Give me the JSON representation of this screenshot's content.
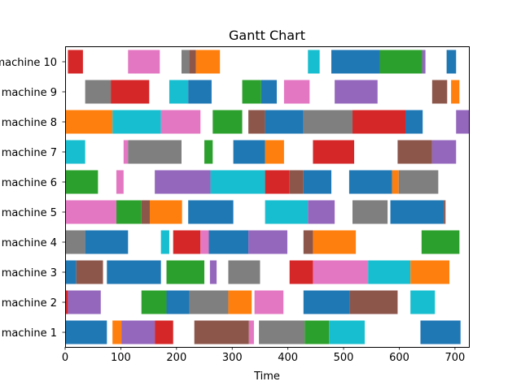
{
  "chart_data": {
    "type": "gantt",
    "title": "Gantt Chart",
    "xlabel": "Time",
    "ylabel": "",
    "xlim": [
      0,
      725
    ],
    "xticks": [
      0,
      100,
      200,
      300,
      400,
      500,
      600,
      700
    ],
    "grid": false,
    "legend": "none",
    "colors": {
      "blue": "#1f77b4",
      "orange": "#ff7f0e",
      "green": "#2ca02c",
      "red": "#d62728",
      "purple": "#9467bd",
      "brown": "#8c564b",
      "pink": "#e377c2",
      "gray": "#7f7f7f",
      "olive": "#bcbd22",
      "cyan": "#17becf"
    },
    "machines": [
      {
        "label": "machine 1",
        "tasks": [
          {
            "start": 0,
            "end": 75,
            "color": "blue"
          },
          {
            "start": 85,
            "end": 101,
            "color": "orange"
          },
          {
            "start": 101,
            "end": 161,
            "color": "purple"
          },
          {
            "start": 161,
            "end": 194,
            "color": "red"
          },
          {
            "start": 232,
            "end": 330,
            "color": "brown"
          },
          {
            "start": 330,
            "end": 339,
            "color": "pink"
          },
          {
            "start": 348,
            "end": 430,
            "color": "gray"
          },
          {
            "start": 430,
            "end": 474,
            "color": "green"
          },
          {
            "start": 474,
            "end": 538,
            "color": "cyan"
          },
          {
            "start": 638,
            "end": 710,
            "color": "blue"
          }
        ]
      },
      {
        "label": "machine 2",
        "tasks": [
          {
            "start": 0,
            "end": 5,
            "color": "red"
          },
          {
            "start": 5,
            "end": 64,
            "color": "purple"
          },
          {
            "start": 137,
            "end": 182,
            "color": "green"
          },
          {
            "start": 182,
            "end": 223,
            "color": "blue"
          },
          {
            "start": 223,
            "end": 293,
            "color": "gray"
          },
          {
            "start": 293,
            "end": 335,
            "color": "orange"
          },
          {
            "start": 340,
            "end": 392,
            "color": "pink"
          },
          {
            "start": 428,
            "end": 511,
            "color": "blue"
          },
          {
            "start": 511,
            "end": 597,
            "color": "brown"
          },
          {
            "start": 620,
            "end": 664,
            "color": "cyan"
          }
        ]
      },
      {
        "label": "machine 3",
        "tasks": [
          {
            "start": 0,
            "end": 20,
            "color": "blue"
          },
          {
            "start": 20,
            "end": 68,
            "color": "brown"
          },
          {
            "start": 75,
            "end": 172,
            "color": "blue"
          },
          {
            "start": 182,
            "end": 250,
            "color": "green"
          },
          {
            "start": 260,
            "end": 272,
            "color": "purple"
          },
          {
            "start": 293,
            "end": 350,
            "color": "gray"
          },
          {
            "start": 403,
            "end": 445,
            "color": "red"
          },
          {
            "start": 445,
            "end": 544,
            "color": "pink"
          },
          {
            "start": 544,
            "end": 620,
            "color": "cyan"
          },
          {
            "start": 620,
            "end": 690,
            "color": "orange"
          }
        ]
      },
      {
        "label": "machine 4",
        "tasks": [
          {
            "start": 0,
            "end": 36,
            "color": "gray"
          },
          {
            "start": 36,
            "end": 113,
            "color": "blue"
          },
          {
            "start": 172,
            "end": 187,
            "color": "cyan"
          },
          {
            "start": 194,
            "end": 243,
            "color": "red"
          },
          {
            "start": 243,
            "end": 258,
            "color": "pink"
          },
          {
            "start": 258,
            "end": 329,
            "color": "blue"
          },
          {
            "start": 329,
            "end": 399,
            "color": "purple"
          },
          {
            "start": 428,
            "end": 445,
            "color": "brown"
          },
          {
            "start": 445,
            "end": 522,
            "color": "orange"
          },
          {
            "start": 640,
            "end": 708,
            "color": "green"
          }
        ]
      },
      {
        "label": "machine 5",
        "tasks": [
          {
            "start": 0,
            "end": 92,
            "color": "pink"
          },
          {
            "start": 92,
            "end": 137,
            "color": "green"
          },
          {
            "start": 137,
            "end": 152,
            "color": "brown"
          },
          {
            "start": 152,
            "end": 210,
            "color": "orange"
          },
          {
            "start": 221,
            "end": 302,
            "color": "blue"
          },
          {
            "start": 359,
            "end": 436,
            "color": "cyan"
          },
          {
            "start": 436,
            "end": 484,
            "color": "purple"
          },
          {
            "start": 516,
            "end": 579,
            "color": "gray"
          },
          {
            "start": 584,
            "end": 680,
            "color": "blue"
          },
          {
            "start": 680,
            "end": 683,
            "color": "brown"
          }
        ]
      },
      {
        "label": "machine 6",
        "tasks": [
          {
            "start": 0,
            "end": 59,
            "color": "green"
          },
          {
            "start": 92,
            "end": 105,
            "color": "pink"
          },
          {
            "start": 161,
            "end": 261,
            "color": "purple"
          },
          {
            "start": 261,
            "end": 359,
            "color": "cyan"
          },
          {
            "start": 359,
            "end": 403,
            "color": "red"
          },
          {
            "start": 403,
            "end": 428,
            "color": "brown"
          },
          {
            "start": 428,
            "end": 478,
            "color": "blue"
          },
          {
            "start": 510,
            "end": 587,
            "color": "blue"
          },
          {
            "start": 587,
            "end": 599,
            "color": "orange"
          },
          {
            "start": 599,
            "end": 670,
            "color": "gray"
          }
        ]
      },
      {
        "label": "machine 7",
        "tasks": [
          {
            "start": 0,
            "end": 36,
            "color": "cyan"
          },
          {
            "start": 105,
            "end": 113,
            "color": "pink"
          },
          {
            "start": 113,
            "end": 209,
            "color": "gray"
          },
          {
            "start": 250,
            "end": 265,
            "color": "green"
          },
          {
            "start": 302,
            "end": 359,
            "color": "blue"
          },
          {
            "start": 359,
            "end": 393,
            "color": "orange"
          },
          {
            "start": 445,
            "end": 519,
            "color": "red"
          },
          {
            "start": 597,
            "end": 659,
            "color": "brown"
          },
          {
            "start": 659,
            "end": 702,
            "color": "purple"
          }
        ]
      },
      {
        "label": "machine 8",
        "tasks": [
          {
            "start": 0,
            "end": 85,
            "color": "orange"
          },
          {
            "start": 85,
            "end": 172,
            "color": "cyan"
          },
          {
            "start": 172,
            "end": 243,
            "color": "pink"
          },
          {
            "start": 265,
            "end": 318,
            "color": "green"
          },
          {
            "start": 329,
            "end": 359,
            "color": "brown"
          },
          {
            "start": 359,
            "end": 428,
            "color": "blue"
          },
          {
            "start": 428,
            "end": 516,
            "color": "gray"
          },
          {
            "start": 516,
            "end": 611,
            "color": "red"
          },
          {
            "start": 611,
            "end": 642,
            "color": "blue"
          },
          {
            "start": 702,
            "end": 725,
            "color": "purple"
          }
        ]
      },
      {
        "label": "machine 9",
        "tasks": [
          {
            "start": 36,
            "end": 82,
            "color": "gray"
          },
          {
            "start": 82,
            "end": 151,
            "color": "red"
          },
          {
            "start": 187,
            "end": 221,
            "color": "cyan"
          },
          {
            "start": 221,
            "end": 263,
            "color": "blue"
          },
          {
            "start": 318,
            "end": 352,
            "color": "green"
          },
          {
            "start": 352,
            "end": 380,
            "color": "blue"
          },
          {
            "start": 393,
            "end": 439,
            "color": "pink"
          },
          {
            "start": 484,
            "end": 561,
            "color": "purple"
          },
          {
            "start": 659,
            "end": 686,
            "color": "brown"
          },
          {
            "start": 693,
            "end": 708,
            "color": "orange"
          }
        ]
      },
      {
        "label": "machine 10",
        "tasks": [
          {
            "start": 5,
            "end": 32,
            "color": "red"
          },
          {
            "start": 113,
            "end": 170,
            "color": "pink"
          },
          {
            "start": 209,
            "end": 223,
            "color": "gray"
          },
          {
            "start": 223,
            "end": 235,
            "color": "brown"
          },
          {
            "start": 235,
            "end": 278,
            "color": "orange"
          },
          {
            "start": 436,
            "end": 457,
            "color": "cyan"
          },
          {
            "start": 478,
            "end": 565,
            "color": "blue"
          },
          {
            "start": 565,
            "end": 641,
            "color": "green"
          },
          {
            "start": 641,
            "end": 647,
            "color": "purple"
          },
          {
            "start": 685,
            "end": 702,
            "color": "blue"
          }
        ]
      }
    ]
  }
}
